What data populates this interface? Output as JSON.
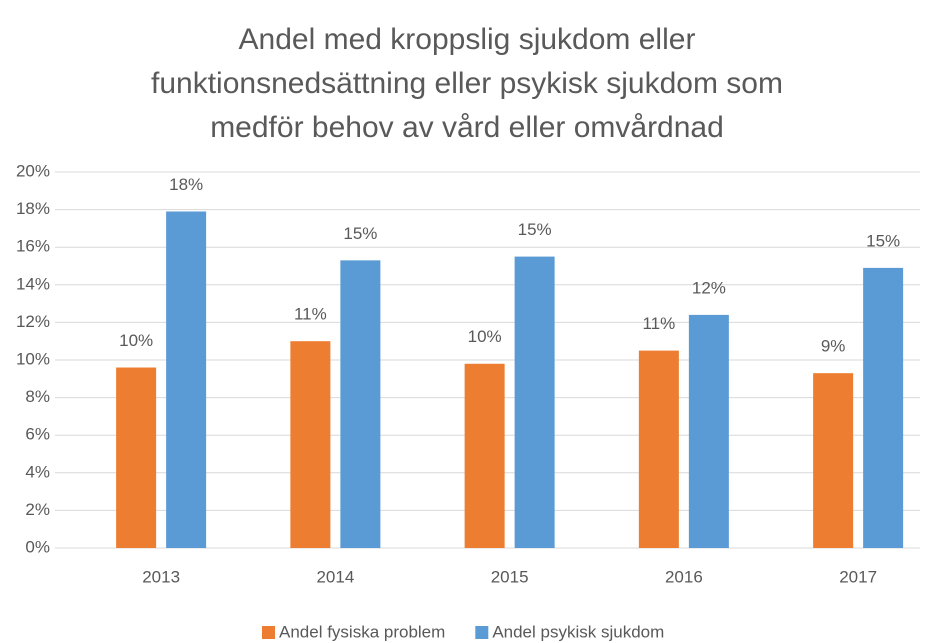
{
  "chart_data": {
    "type": "bar",
    "title": "Andel med kroppslig sjukdom eller funktionsnedsättning eller psykisk sjukdom som medför behov av vård eller omvårdnad",
    "categories": [
      "2013",
      "2014",
      "2015",
      "2016",
      "2017"
    ],
    "series": [
      {
        "name": "Andel fysiska problem",
        "color": "#ed7d31",
        "values": [
          9.6,
          11.0,
          9.8,
          10.5,
          9.3
        ],
        "value_labels": [
          "10%",
          "11%",
          "10%",
          "11%",
          "9%"
        ]
      },
      {
        "name": "Andel psykisk sjukdom",
        "color": "#5b9bd5",
        "values": [
          17.9,
          15.3,
          15.5,
          12.4,
          14.9
        ],
        "value_labels": [
          "18%",
          "15%",
          "15%",
          "12%",
          "15%"
        ]
      }
    ],
    "ylim": [
      0,
      20
    ],
    "yticks": [
      {
        "value": 0,
        "label": "0%"
      },
      {
        "value": 2,
        "label": "2%"
      },
      {
        "value": 4,
        "label": "4%"
      },
      {
        "value": 6,
        "label": "6%"
      },
      {
        "value": 8,
        "label": "8%"
      },
      {
        "value": 10,
        "label": "10%"
      },
      {
        "value": 12,
        "label": "12%"
      },
      {
        "value": 14,
        "label": "14%"
      },
      {
        "value": 16,
        "label": "16%"
      },
      {
        "value": 18,
        "label": "18%"
      },
      {
        "value": 20,
        "label": "20%"
      }
    ],
    "grid": true,
    "legend": "bottom"
  }
}
